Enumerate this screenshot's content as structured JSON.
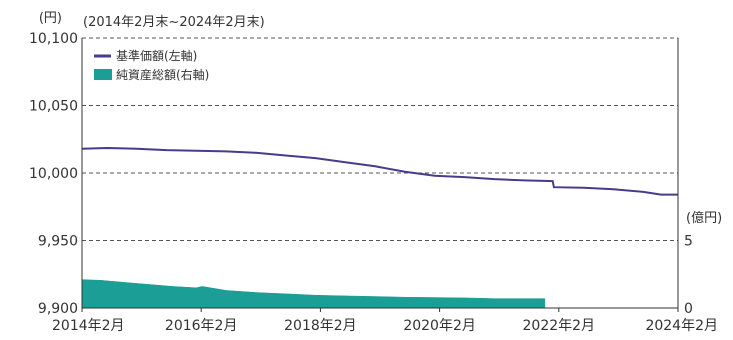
{
  "chart_data": {
    "type": "line",
    "period_label": "(2014年2月末~2024年2月末)",
    "left_axis": {
      "unit": "(円)",
      "range": [
        9900,
        10100
      ],
      "ticks": [
        {
          "value": 9900,
          "label": "9,900"
        },
        {
          "value": 9950,
          "label": "9,950"
        },
        {
          "value": 10000,
          "label": "10,000"
        },
        {
          "value": 10050,
          "label": "10,050"
        },
        {
          "value": 10100,
          "label": "10,100"
        }
      ]
    },
    "right_axis": {
      "unit": "(億円)",
      "range": [
        0,
        20
      ],
      "ticks": [
        {
          "value": 0,
          "label": "0"
        },
        {
          "value": 5,
          "label": "5"
        }
      ]
    },
    "x_axis": {
      "range": [
        2014.083,
        2024.083
      ],
      "ticks": [
        {
          "value": 2014.083,
          "label": "2014年2月"
        },
        {
          "value": 2016.083,
          "label": "2016年2月"
        },
        {
          "value": 2018.083,
          "label": "2018年2月"
        },
        {
          "value": 2020.083,
          "label": "2020年2月"
        },
        {
          "value": 2022.083,
          "label": "2022年2月"
        },
        {
          "value": 2024.083,
          "label": "2024年2月"
        }
      ]
    },
    "grid": "horizontal-dashed",
    "legend": {
      "placement": "top-left",
      "items": [
        {
          "label": "基準価額(左軸)",
          "kind": "line",
          "color": "#4a3a8c"
        },
        {
          "label": "純資産総額(右軸)",
          "kind": "area",
          "color": "#1a9e96"
        }
      ]
    },
    "series": [
      {
        "label": "基準価額(左軸)",
        "axis": "left",
        "kind": "line",
        "color": "#4a3a8c",
        "points": [
          [
            2014.083,
            10018
          ],
          [
            2014.5,
            10018.5
          ],
          [
            2015.0,
            10018
          ],
          [
            2015.5,
            10017
          ],
          [
            2016.0,
            10016.5
          ],
          [
            2016.5,
            10016
          ],
          [
            2017.0,
            10015
          ],
          [
            2017.5,
            10013
          ],
          [
            2018.0,
            10011
          ],
          [
            2018.5,
            10008
          ],
          [
            2019.0,
            10005
          ],
          [
            2019.5,
            10001
          ],
          [
            2020.0,
            9998
          ],
          [
            2020.5,
            9997
          ],
          [
            2021.0,
            9995.5
          ],
          [
            2021.5,
            9994.5
          ],
          [
            2021.98,
            9994
          ],
          [
            2022.0,
            9989.5
          ],
          [
            2022.5,
            9989
          ],
          [
            2023.0,
            9988
          ],
          [
            2023.5,
            9986
          ],
          [
            2023.8,
            9984
          ],
          [
            2024.083,
            9984
          ]
        ]
      },
      {
        "label": "純資産総額(右軸)",
        "axis": "right",
        "kind": "area",
        "color": "#1a9e96",
        "points": [
          [
            2014.083,
            2.1
          ],
          [
            2014.4,
            2.05
          ],
          [
            2014.8,
            1.9
          ],
          [
            2015.2,
            1.75
          ],
          [
            2015.6,
            1.6
          ],
          [
            2016.0,
            1.5
          ],
          [
            2016.1,
            1.6
          ],
          [
            2016.5,
            1.3
          ],
          [
            2017.0,
            1.15
          ],
          [
            2017.5,
            1.05
          ],
          [
            2018.0,
            0.95
          ],
          [
            2018.5,
            0.9
          ],
          [
            2019.0,
            0.85
          ],
          [
            2019.5,
            0.8
          ],
          [
            2020.0,
            0.78
          ],
          [
            2020.5,
            0.75
          ],
          [
            2021.0,
            0.7
          ],
          [
            2021.5,
            0.7
          ],
          [
            2021.85,
            0.7
          ]
        ]
      }
    ]
  }
}
